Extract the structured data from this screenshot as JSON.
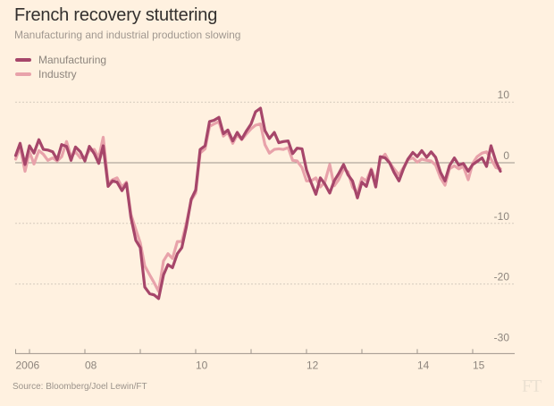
{
  "chart_data": {
    "type": "line",
    "title": "French recovery stuttering",
    "subtitle": "Manufacturing and industrial production slowing",
    "xlabel": "",
    "ylabel": "",
    "ylim": [
      -30,
      10
    ],
    "xlim": [
      2006.75,
      2015.9
    ],
    "yticks": [
      10,
      0,
      -10,
      -20,
      -30
    ],
    "yticklabels": [
      "10",
      "0",
      "-10",
      "-20",
      "-30"
    ],
    "xticks": [
      2006.75,
      2007,
      2008,
      2009,
      2010,
      2011,
      2012,
      2013,
      2014,
      2015
    ],
    "xticklabels": [
      {
        "pos": 2006.75,
        "label": "2006"
      },
      {
        "pos": 2008,
        "label": "08"
      },
      {
        "pos": 2010,
        "label": "10"
      },
      {
        "pos": 2012,
        "label": "12"
      },
      {
        "pos": 2014,
        "label": "14"
      },
      {
        "pos": 2015,
        "label": "15"
      }
    ],
    "grid": true,
    "legend_position": "top-left",
    "series": [
      {
        "name": "Manufacturing",
        "color": "#a6466a",
        "points": [
          [
            2006.75,
            1.2
          ],
          [
            2006.83,
            3.2
          ],
          [
            2006.92,
            -0.3
          ],
          [
            2007.0,
            2.8
          ],
          [
            2007.08,
            1.6
          ],
          [
            2007.17,
            3.8
          ],
          [
            2007.25,
            2.2
          ],
          [
            2007.33,
            2.1
          ],
          [
            2007.42,
            1.8
          ],
          [
            2007.5,
            0.5
          ],
          [
            2007.58,
            3.0
          ],
          [
            2007.67,
            2.7
          ],
          [
            2007.75,
            0.4
          ],
          [
            2007.83,
            2.6
          ],
          [
            2007.92,
            1.8
          ],
          [
            2008.0,
            0.3
          ],
          [
            2008.08,
            2.7
          ],
          [
            2008.17,
            1.5
          ],
          [
            2008.25,
            -0.1
          ],
          [
            2008.33,
            2.8
          ],
          [
            2008.42,
            -3.9
          ],
          [
            2008.5,
            -3.0
          ],
          [
            2008.58,
            -3.2
          ],
          [
            2008.67,
            -4.6
          ],
          [
            2008.75,
            -3.4
          ],
          [
            2008.83,
            -9.0
          ],
          [
            2008.92,
            -12.8
          ],
          [
            2009.0,
            -14.0
          ],
          [
            2009.08,
            -20.5
          ],
          [
            2009.17,
            -21.6
          ],
          [
            2009.25,
            -21.8
          ],
          [
            2009.33,
            -22.4
          ],
          [
            2009.42,
            -18.5
          ],
          [
            2009.5,
            -16.8
          ],
          [
            2009.58,
            -17.3
          ],
          [
            2009.67,
            -15.0
          ],
          [
            2009.75,
            -14.0
          ],
          [
            2009.83,
            -10.6
          ],
          [
            2009.92,
            -6.0
          ],
          [
            2010.0,
            -4.5
          ],
          [
            2010.08,
            2.2
          ],
          [
            2010.17,
            2.8
          ],
          [
            2010.25,
            6.8
          ],
          [
            2010.33,
            7.0
          ],
          [
            2010.42,
            7.5
          ],
          [
            2010.5,
            4.8
          ],
          [
            2010.58,
            5.4
          ],
          [
            2010.67,
            3.6
          ],
          [
            2010.75,
            5.0
          ],
          [
            2010.83,
            3.9
          ],
          [
            2010.92,
            5.3
          ],
          [
            2011.0,
            6.4
          ],
          [
            2011.08,
            8.4
          ],
          [
            2011.17,
            9.0
          ],
          [
            2011.25,
            5.3
          ],
          [
            2011.33,
            4.0
          ],
          [
            2011.42,
            5.0
          ],
          [
            2011.5,
            3.3
          ],
          [
            2011.58,
            3.5
          ],
          [
            2011.67,
            3.6
          ],
          [
            2011.75,
            1.5
          ],
          [
            2011.83,
            2.4
          ],
          [
            2011.92,
            2.3
          ],
          [
            2012.0,
            -1.2
          ],
          [
            2012.08,
            -3.2
          ],
          [
            2012.17,
            -5.2
          ],
          [
            2012.25,
            -2.5
          ],
          [
            2012.33,
            -3.5
          ],
          [
            2012.42,
            -5.0
          ],
          [
            2012.5,
            -3.0
          ],
          [
            2012.58,
            -1.8
          ],
          [
            2012.67,
            -0.3
          ],
          [
            2012.75,
            -2.0
          ],
          [
            2012.83,
            -3.0
          ],
          [
            2012.92,
            -5.8
          ],
          [
            2013.0,
            -3.2
          ],
          [
            2013.08,
            -3.9
          ],
          [
            2013.17,
            -1.2
          ],
          [
            2013.25,
            -4.0
          ],
          [
            2013.33,
            1.0
          ],
          [
            2013.42,
            0.8
          ],
          [
            2013.5,
            0.0
          ],
          [
            2013.58,
            -1.6
          ],
          [
            2013.67,
            -3.0
          ],
          [
            2013.75,
            -1.0
          ],
          [
            2013.83,
            0.6
          ],
          [
            2013.92,
            1.7
          ],
          [
            2014.0,
            1.0
          ],
          [
            2014.08,
            2.0
          ],
          [
            2014.17,
            0.9
          ],
          [
            2014.25,
            1.8
          ],
          [
            2014.33,
            0.9
          ],
          [
            2014.42,
            -1.6
          ],
          [
            2014.5,
            -3.0
          ],
          [
            2014.58,
            -0.5
          ],
          [
            2014.67,
            0.8
          ],
          [
            2014.75,
            -0.4
          ],
          [
            2014.83,
            -0.1
          ],
          [
            2014.92,
            -1.4
          ],
          [
            2015.0,
            -0.3
          ],
          [
            2015.08,
            0.2
          ],
          [
            2015.17,
            0.8
          ],
          [
            2015.25,
            -0.6
          ],
          [
            2015.33,
            2.8
          ],
          [
            2015.42,
            0.2
          ],
          [
            2015.5,
            -1.4
          ]
        ]
      },
      {
        "name": "Industry",
        "color": "#e8a2aa",
        "points": [
          [
            2006.75,
            0.6
          ],
          [
            2006.83,
            2.6
          ],
          [
            2006.92,
            -1.4
          ],
          [
            2007.0,
            1.8
          ],
          [
            2007.08,
            -0.2
          ],
          [
            2007.17,
            2.0
          ],
          [
            2007.25,
            1.4
          ],
          [
            2007.33,
            0.4
          ],
          [
            2007.42,
            0.8
          ],
          [
            2007.5,
            0.3
          ],
          [
            2007.58,
            1.0
          ],
          [
            2007.67,
            3.5
          ],
          [
            2007.75,
            1.0
          ],
          [
            2007.83,
            1.8
          ],
          [
            2007.92,
            0.8
          ],
          [
            2008.0,
            0.9
          ],
          [
            2008.08,
            2.0
          ],
          [
            2008.17,
            2.2
          ],
          [
            2008.25,
            0.8
          ],
          [
            2008.33,
            4.2
          ],
          [
            2008.42,
            -3.4
          ],
          [
            2008.5,
            -2.8
          ],
          [
            2008.58,
            -2.5
          ],
          [
            2008.67,
            -4.0
          ],
          [
            2008.75,
            -3.2
          ],
          [
            2008.83,
            -8.5
          ],
          [
            2008.92,
            -11.0
          ],
          [
            2009.0,
            -13.2
          ],
          [
            2009.08,
            -17.0
          ],
          [
            2009.17,
            -18.5
          ],
          [
            2009.25,
            -19.8
          ],
          [
            2009.33,
            -21.2
          ],
          [
            2009.42,
            -16.2
          ],
          [
            2009.5,
            -15.0
          ],
          [
            2009.58,
            -15.8
          ],
          [
            2009.67,
            -13.0
          ],
          [
            2009.75,
            -13.0
          ],
          [
            2009.83,
            -10.0
          ],
          [
            2009.92,
            -6.2
          ],
          [
            2010.0,
            -5.0
          ],
          [
            2010.08,
            1.6
          ],
          [
            2010.17,
            2.3
          ],
          [
            2010.25,
            6.0
          ],
          [
            2010.33,
            6.4
          ],
          [
            2010.42,
            6.8
          ],
          [
            2010.5,
            4.4
          ],
          [
            2010.58,
            5.0
          ],
          [
            2010.67,
            3.2
          ],
          [
            2010.75,
            4.6
          ],
          [
            2010.83,
            3.8
          ],
          [
            2010.92,
            4.8
          ],
          [
            2011.0,
            5.6
          ],
          [
            2011.08,
            6.2
          ],
          [
            2011.17,
            6.4
          ],
          [
            2011.25,
            3.0
          ],
          [
            2011.33,
            1.6
          ],
          [
            2011.42,
            2.2
          ],
          [
            2011.5,
            2.3
          ],
          [
            2011.58,
            2.2
          ],
          [
            2011.67,
            2.5
          ],
          [
            2011.75,
            0.4
          ],
          [
            2011.83,
            0.3
          ],
          [
            2011.92,
            -0.8
          ],
          [
            2012.0,
            -3.0
          ],
          [
            2012.08,
            -3.0
          ],
          [
            2012.17,
            -2.5
          ],
          [
            2012.25,
            -4.0
          ],
          [
            2012.33,
            -3.2
          ],
          [
            2012.42,
            -0.3
          ],
          [
            2012.5,
            -3.8
          ],
          [
            2012.58,
            -2.8
          ],
          [
            2012.67,
            -1.0
          ],
          [
            2012.75,
            -1.5
          ],
          [
            2012.83,
            -4.0
          ],
          [
            2012.92,
            -5.0
          ],
          [
            2013.0,
            -2.5
          ],
          [
            2013.08,
            -3.0
          ],
          [
            2013.17,
            -1.0
          ],
          [
            2013.25,
            -3.0
          ],
          [
            2013.33,
            0.5
          ],
          [
            2013.42,
            1.4
          ],
          [
            2013.5,
            0.0
          ],
          [
            2013.58,
            -1.0
          ],
          [
            2013.67,
            -2.0
          ],
          [
            2013.75,
            -0.8
          ],
          [
            2013.83,
            0.5
          ],
          [
            2013.92,
            0.8
          ],
          [
            2014.0,
            0.1
          ],
          [
            2014.08,
            0.6
          ],
          [
            2014.17,
            0.4
          ],
          [
            2014.25,
            0.3
          ],
          [
            2014.33,
            -0.4
          ],
          [
            2014.42,
            -2.5
          ],
          [
            2014.5,
            -3.7
          ],
          [
            2014.58,
            -1.0
          ],
          [
            2014.67,
            -0.5
          ],
          [
            2014.75,
            -1.0
          ],
          [
            2014.83,
            -0.6
          ],
          [
            2014.92,
            -2.8
          ],
          [
            2015.0,
            -0.1
          ],
          [
            2015.08,
            1.0
          ],
          [
            2015.17,
            1.6
          ],
          [
            2015.25,
            1.8
          ],
          [
            2015.33,
            0.6
          ],
          [
            2015.42,
            -0.8
          ],
          [
            2015.5,
            -1.0
          ]
        ]
      }
    ]
  },
  "header": {
    "title": "French recovery stuttering",
    "subtitle": "Manufacturing and industrial production slowing"
  },
  "legend": {
    "items": [
      {
        "label": "Manufacturing",
        "color": "#a6466a"
      },
      {
        "label": "Industry",
        "color": "#e8a2aa"
      }
    ]
  },
  "footer": {
    "source": "Source: Bloomberg/Joel Lewin/FT",
    "logo": "FT"
  }
}
